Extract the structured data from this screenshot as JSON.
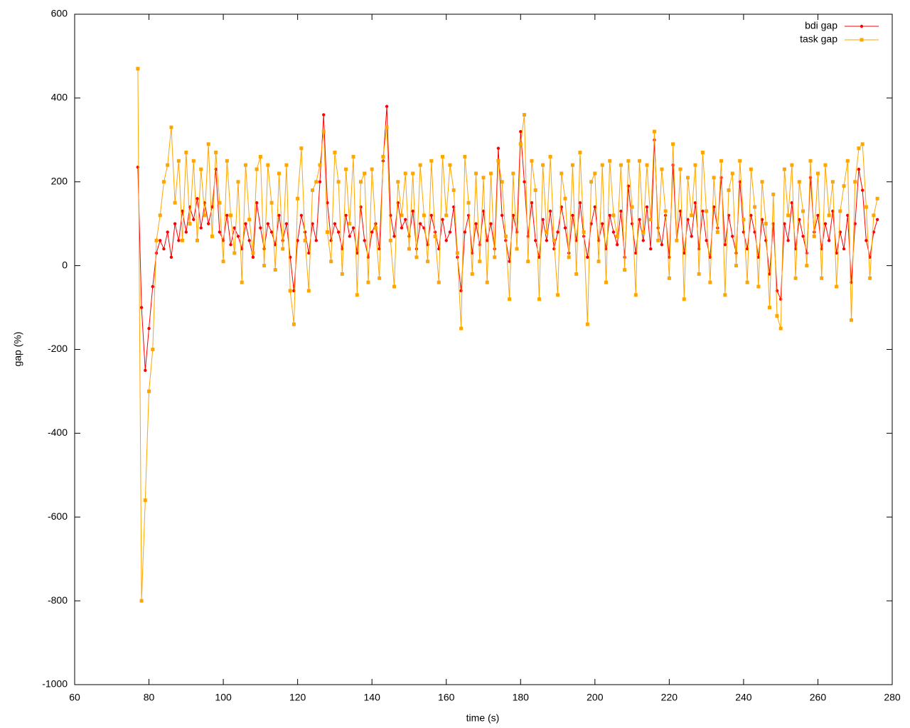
{
  "chart_data": {
    "type": "line",
    "xlabel": "time (s)",
    "ylabel": "gap (%)",
    "xlim": [
      60,
      280
    ],
    "xticks": [
      60,
      80,
      100,
      120,
      140,
      160,
      180,
      200,
      220,
      240,
      260,
      280
    ],
    "ylim": [
      -1000,
      600
    ],
    "yticks": [
      -1000,
      -800,
      -600,
      -400,
      -200,
      0,
      200,
      400,
      600
    ],
    "legend": "top-right",
    "x": [
      77,
      78,
      79,
      80,
      81,
      82,
      83,
      84,
      85,
      86,
      87,
      88,
      89,
      90,
      91,
      92,
      93,
      94,
      95,
      96,
      97,
      98,
      99,
      100,
      101,
      102,
      103,
      104,
      105,
      106,
      107,
      108,
      109,
      110,
      111,
      112,
      113,
      114,
      115,
      116,
      117,
      118,
      119,
      120,
      121,
      122,
      123,
      124,
      125,
      126,
      127,
      128,
      129,
      130,
      131,
      132,
      133,
      134,
      135,
      136,
      137,
      138,
      139,
      140,
      141,
      142,
      143,
      144,
      145,
      146,
      147,
      148,
      149,
      150,
      151,
      152,
      153,
      154,
      155,
      156,
      157,
      158,
      159,
      160,
      161,
      162,
      163,
      164,
      165,
      166,
      167,
      168,
      169,
      170,
      171,
      172,
      173,
      174,
      175,
      176,
      177,
      178,
      179,
      180,
      181,
      182,
      183,
      184,
      185,
      186,
      187,
      188,
      189,
      190,
      191,
      192,
      193,
      194,
      195,
      196,
      197,
      198,
      199,
      200,
      201,
      202,
      203,
      204,
      205,
      206,
      207,
      208,
      209,
      210,
      211,
      212,
      213,
      214,
      215,
      216,
      217,
      218,
      219,
      220,
      221,
      222,
      223,
      224,
      225,
      226,
      227,
      228,
      229,
      230,
      231,
      232,
      233,
      234,
      235,
      236,
      237,
      238,
      239,
      240,
      241,
      242,
      243,
      244,
      245,
      246,
      247,
      248,
      249,
      250,
      251,
      252,
      253,
      254,
      255,
      256,
      257,
      258,
      259,
      260,
      261,
      262,
      263,
      264,
      265,
      266,
      267,
      268,
      269,
      270,
      271,
      272,
      273,
      274,
      275,
      276
    ],
    "series": [
      {
        "name": "bdi gap",
        "color": "#ff0000",
        "marker": "circle",
        "values": [
          235,
          -100,
          -250,
          -150,
          -50,
          30,
          60,
          40,
          80,
          20,
          100,
          60,
          130,
          80,
          140,
          110,
          160,
          90,
          150,
          100,
          140,
          230,
          80,
          60,
          120,
          50,
          90,
          70,
          40,
          100,
          60,
          20,
          150,
          90,
          40,
          100,
          80,
          50,
          120,
          60,
          100,
          20,
          -60,
          60,
          120,
          80,
          30,
          100,
          60,
          200,
          360,
          150,
          60,
          100,
          80,
          40,
          120,
          70,
          90,
          30,
          140,
          60,
          20,
          80,
          100,
          40,
          250,
          380,
          120,
          70,
          150,
          90,
          110,
          70,
          130,
          40,
          100,
          90,
          50,
          120,
          80,
          40,
          110,
          60,
          80,
          140,
          20,
          -60,
          80,
          120,
          30,
          100,
          50,
          130,
          60,
          100,
          40,
          280,
          120,
          60,
          10,
          120,
          80,
          320,
          200,
          70,
          150,
          60,
          20,
          110,
          60,
          130,
          40,
          80,
          140,
          90,
          30,
          120,
          60,
          150,
          70,
          20,
          100,
          140,
          60,
          100,
          40,
          120,
          80,
          50,
          130,
          20,
          190,
          100,
          30,
          110,
          60,
          140,
          40,
          300,
          90,
          50,
          120,
          20,
          240,
          60,
          130,
          30,
          110,
          70,
          150,
          40,
          130,
          60,
          20,
          140,
          90,
          210,
          50,
          120,
          70,
          30,
          200,
          80,
          40,
          120,
          80,
          20,
          110,
          60,
          -20,
          100,
          -60,
          -80,
          100,
          60,
          150,
          40,
          110,
          70,
          30,
          210,
          80,
          120,
          40,
          100,
          60,
          130,
          30,
          80,
          40,
          120,
          -40,
          100,
          230,
          180,
          60,
          20,
          80,
          110
        ]
      },
      {
        "name": "task gap",
        "color": "#ffa500",
        "marker": "square",
        "values": [
          470,
          -800,
          -560,
          -300,
          -200,
          60,
          120,
          200,
          240,
          330,
          150,
          250,
          60,
          270,
          100,
          250,
          60,
          230,
          120,
          290,
          70,
          270,
          150,
          10,
          250,
          120,
          30,
          200,
          -40,
          240,
          110,
          30,
          230,
          260,
          0,
          240,
          150,
          -10,
          220,
          40,
          240,
          -60,
          -140,
          160,
          280,
          60,
          -60,
          180,
          200,
          240,
          320,
          80,
          10,
          270,
          200,
          -20,
          230,
          100,
          260,
          -70,
          200,
          220,
          -40,
          230,
          90,
          -30,
          260,
          330,
          60,
          -50,
          200,
          120,
          220,
          40,
          220,
          20,
          240,
          120,
          10,
          250,
          70,
          -40,
          260,
          120,
          240,
          180,
          30,
          -150,
          260,
          150,
          -20,
          220,
          10,
          210,
          -40,
          220,
          20,
          250,
          200,
          70,
          -80,
          220,
          40,
          290,
          360,
          10,
          250,
          180,
          -80,
          240,
          80,
          260,
          60,
          -70,
          220,
          160,
          20,
          240,
          -20,
          270,
          80,
          -140,
          200,
          220,
          10,
          240,
          -40,
          250,
          120,
          70,
          240,
          -10,
          250,
          140,
          -70,
          250,
          80,
          240,
          110,
          320,
          60,
          230,
          130,
          -30,
          290,
          60,
          230,
          -80,
          210,
          120,
          240,
          -20,
          270,
          130,
          -40,
          210,
          80,
          250,
          -70,
          180,
          220,
          0,
          250,
          110,
          -40,
          230,
          140,
          -50,
          200,
          100,
          -100,
          170,
          -120,
          -150,
          230,
          120,
          240,
          -30,
          200,
          130,
          0,
          250,
          70,
          220,
          -30,
          240,
          120,
          200,
          -50,
          130,
          190,
          250,
          -130,
          200,
          280,
          290,
          140,
          -30,
          120,
          160
        ]
      }
    ]
  }
}
